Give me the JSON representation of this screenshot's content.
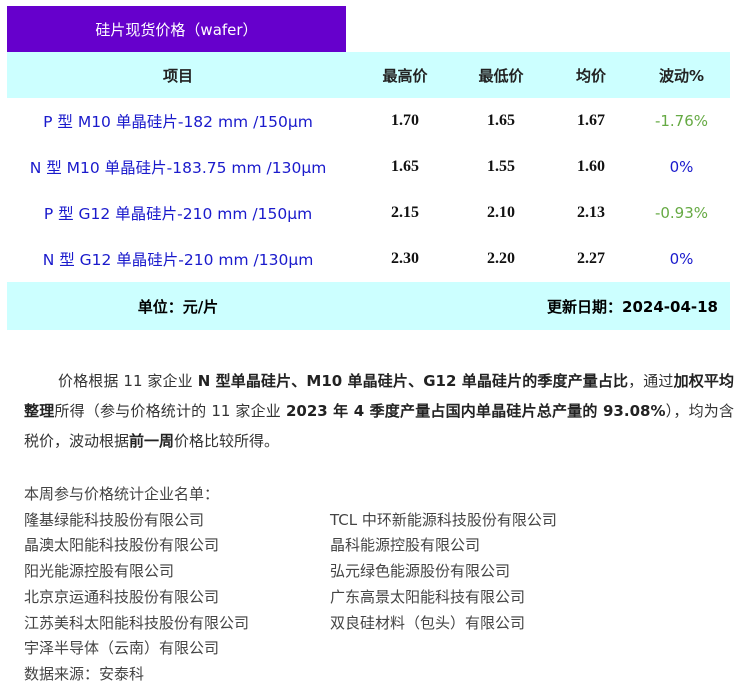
{
  "title": "硅片现货价格（wafer）",
  "table": {
    "headers": [
      "项目",
      "最高价",
      "最低价",
      "均价",
      "波动%"
    ],
    "rows": [
      {
        "item": "P 型 M10 单晶硅片-182 mm /150μm",
        "max": "1.70",
        "min": "1.65",
        "avg": "1.67",
        "change": "-1.76%"
      },
      {
        "item": "N 型 M10 单晶硅片-183.75 mm /130μm",
        "max": "1.65",
        "min": "1.55",
        "avg": "1.60",
        "change": "0%"
      },
      {
        "item": "P 型 G12 单晶硅片-210 mm /150μm",
        "max": "2.15",
        "min": "2.10",
        "avg": "2.13",
        "change": "-0.93%"
      },
      {
        "item": "N 型 G12 单晶硅片-210 mm /130μm",
        "max": "2.30",
        "min": "2.20",
        "avg": "2.27",
        "change": "0%"
      }
    ],
    "unit": "单位：元/片",
    "updated": "更新日期：2024-04-18"
  },
  "colors": {
    "title_bg": "#6600cc",
    "header_bg": "#ccffff",
    "item_text": "#1a1acc",
    "change_negative": "#66aa44",
    "change_zero": "#1a1acc"
  },
  "note": [
    "价格根据 11 家企业 ",
    "N 型单晶硅片、M10 单晶硅片、G12 单晶硅片的季度产量占比",
    "，通过",
    "加权平均整理",
    "所得（参与价格统计的 11 家企业 ",
    "2023 年 4 季度产量占国内单晶硅片总产量的 93.08%",
    "），均为含税价，波动根据",
    "前一周",
    "价格比较所得。"
  ],
  "companies": {
    "header": "本周参与价格统计企业名单：",
    "list": [
      "隆基绿能科技股份有限公司",
      "TCL 中环新能源科技股份有限公司",
      "晶澳太阳能科技股份有限公司",
      "晶科能源控股有限公司",
      "阳光能源控股有限公司",
      "弘元绿色能源股份有限公司",
      "北京京运通科技股份有限公司",
      "广东高景太阳能科技有限公司",
      "江苏美科太阳能科技股份有限公司",
      "双良硅材料（包头）有限公司",
      "宇泽半导体（云南）有限公司"
    ],
    "source": "数据来源：安泰科"
  }
}
